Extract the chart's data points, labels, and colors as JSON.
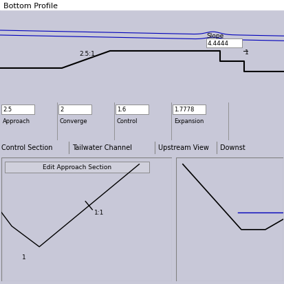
{
  "title": "Bottom Profile",
  "bg_color": "#c8c8d8",
  "top_panel_bg": "#dcdce8",
  "bottom_panel_bg": "#dcdce8",
  "section_labels": [
    "Approach",
    "Converge",
    "Control",
    "Expansion"
  ],
  "section_values": [
    "2.5",
    "2",
    "1.6",
    "1.7778"
  ],
  "slope_label": "Slope",
  "slope_value": "4.4444",
  "slope_ratio": "1",
  "converge_label": "2.5:1",
  "tab_labels": [
    "Control Section",
    "Tailwater Channel",
    "Upstream View",
    "Downst"
  ],
  "approach_edit_label": "Edit Approach Section",
  "bottom_flat_label": "1",
  "slope_tick_label": "1:1",
  "wsp_color": "#0000bb",
  "line_color": "#000000",
  "divider_color": "#888888",
  "label_fontsize": 6.5,
  "title_fontsize": 8,
  "tab_fontsize": 7
}
